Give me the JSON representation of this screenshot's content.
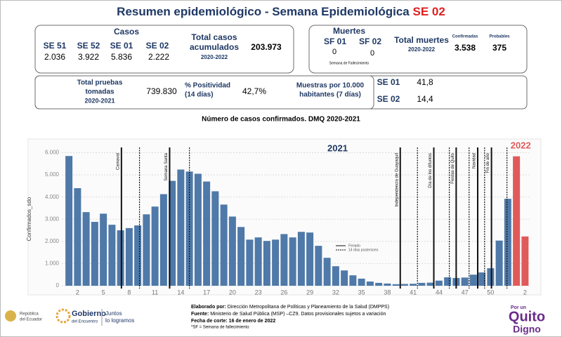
{
  "header": {
    "title": "Resumen epidemiológico - Semana Epidemiológica ",
    "title_highlight": "SE 02"
  },
  "casos": {
    "heading": "Casos",
    "weeks": [
      "SE 51",
      "SE 52",
      "SE 01",
      "SE 02"
    ],
    "values": [
      "2.036",
      "3.922",
      "5.836",
      "2.222"
    ],
    "total_label": [
      "Total casos",
      "acumulados"
    ],
    "total_period": "2020-2022",
    "total": "203.973"
  },
  "muertes": {
    "heading": "Muertes",
    "weeks": [
      "SF 01",
      "SF 02"
    ],
    "values": [
      "0",
      "0"
    ],
    "note": "Semana de Fallecimiento",
    "total_label": "Total muertes",
    "total_period": "2020-2022",
    "confirmed_label": "Confirmadas",
    "confirmed": "3.538",
    "probable_label": "Probables",
    "probable": "375"
  },
  "indicadores": {
    "tests_label": [
      "Total pruebas",
      "tomadas",
      "2020-2021"
    ],
    "tests": "739.830",
    "positivity_label": [
      "% Positividad",
      "(14 días)"
    ],
    "positivity": "42,7%",
    "samples_label": [
      "Muestras por 10.000",
      "habitantes (7 días)"
    ],
    "samples": [
      {
        "week": "SE 01",
        "value": "41,8"
      },
      {
        "week": "SE 02",
        "value": "14,4"
      }
    ]
  },
  "chart_data": {
    "type": "bar",
    "title": "Número de casos confirmados. DMQ 2020-2021",
    "y_label": "Confirmados_sdo",
    "categories": [
      null,
      "2",
      null,
      null,
      "5",
      null,
      null,
      "8",
      null,
      null,
      "11",
      null,
      null,
      "14",
      null,
      null,
      "17",
      null,
      null,
      "20",
      null,
      null,
      "23",
      null,
      null,
      "26",
      null,
      null,
      "29",
      null,
      null,
      "32",
      null,
      null,
      "35",
      null,
      null,
      "38",
      null,
      null,
      "41",
      null,
      null,
      "44",
      null,
      null,
      "47",
      null,
      null,
      "50",
      null,
      null,
      null,
      "2"
    ],
    "series": [
      {
        "name": "2021",
        "color": "#4f79a8",
        "values": [
          5850,
          4400,
          3320,
          2880,
          3250,
          2750,
          2500,
          2600,
          2720,
          3220,
          3570,
          4130,
          4730,
          5240,
          5150,
          5050,
          4700,
          4260,
          3660,
          3120,
          2650,
          2080,
          2180,
          2020,
          2080,
          2330,
          2180,
          2430,
          2400,
          1800,
          1260,
          880,
          690,
          470,
          320,
          190,
          130,
          100,
          70,
          80,
          90,
          130,
          140,
          230,
          380,
          350,
          370,
          500,
          600,
          790,
          2036,
          3922,
          null,
          null
        ]
      },
      {
        "name": "2022",
        "color": "#e05a5a",
        "values": [
          null,
          null,
          null,
          null,
          null,
          null,
          null,
          null,
          null,
          null,
          null,
          null,
          null,
          null,
          null,
          null,
          null,
          null,
          null,
          null,
          null,
          null,
          null,
          null,
          null,
          null,
          null,
          null,
          null,
          null,
          null,
          null,
          null,
          null,
          null,
          null,
          null,
          null,
          null,
          null,
          null,
          null,
          null,
          null,
          null,
          null,
          null,
          null,
          null,
          null,
          null,
          null,
          5836,
          2222
        ]
      }
    ],
    "ylim": [
      0,
      6300
    ],
    "yticks": [
      0,
      {
        "value": 1000,
        "label": "1.000"
      },
      {
        "value": 2000,
        "label": "2.000"
      },
      {
        "value": 3000,
        "label": "3.000"
      },
      {
        "value": 4000,
        "label": "4.000"
      },
      {
        "value": 5000,
        "label": "5.000"
      },
      {
        "value": 6000,
        "label": "6.000"
      }
    ],
    "grid": true,
    "annotations": [
      {
        "label": "Carnaval",
        "at": 7.1,
        "dashed_at": 9.2
      },
      {
        "label": "Semana Santa",
        "at": 12.7,
        "dashed_at": 15.0
      },
      {
        "label": "Independencia de Guayaquil",
        "at": 39.5,
        "dashed_at": 41.5
      },
      {
        "label": "Día de los difuntos",
        "at": 43.4,
        "dashed_at": 45.2
      },
      {
        "label": "Fiestas de Quito",
        "at": 46.0,
        "dashed_at": 47.5
      },
      {
        "label": "Navidad",
        "at": 48.5,
        "dashed_at": 49.3
      },
      {
        "label": "Fin de año",
        "at": 50.1,
        "dashed_at": 51.9
      }
    ],
    "line_legend": [
      "Feriado",
      "14 días posteriores"
    ]
  },
  "footer": {
    "made_by_label": "Elaborado por:",
    "made_by": " Dirección Metropolitana de Políticas y Planeamiento de la Salud (DMPPS)",
    "source_label": "Fuente:",
    "source": " Ministerio de Salud Pública (MSP) –CZ9. Datos provisionales sujetos a variación",
    "cutoff": "Fecha de corte: 16 de enero de 2022",
    "note": "*SF = Semana de fallecimiento"
  },
  "logos": {
    "ecuador": [
      "República",
      "del Ecuador"
    ],
    "gobierno": [
      "Gobierno",
      "del Encuentro"
    ],
    "juntos": [
      "Juntos",
      "lo logramos"
    ],
    "quito": [
      "Por un",
      "Quito",
      "Digno"
    ]
  }
}
